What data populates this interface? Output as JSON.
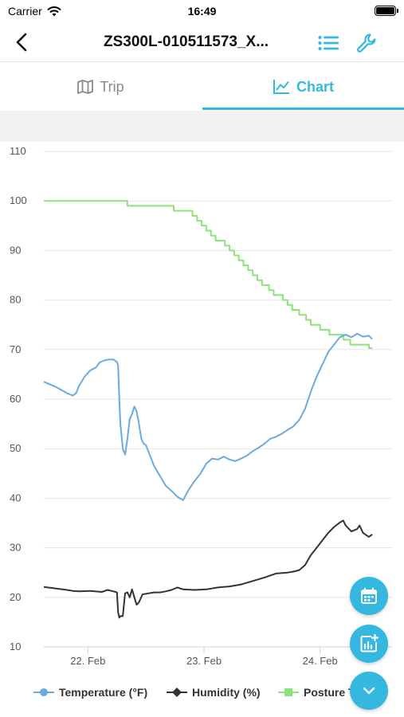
{
  "status_bar": {
    "carrier": "Carrier",
    "time": "16:49"
  },
  "nav": {
    "title": "ZS300L-010511573_X...",
    "back_icon": "chevron-left-icon",
    "list_icon": "list-icon",
    "settings_icon": "wrench-icon"
  },
  "tabs": [
    {
      "label": "Trip",
      "icon": "map-icon",
      "active": false
    },
    {
      "label": "Chart",
      "icon": "line-chart-icon",
      "active": true
    }
  ],
  "colors": {
    "accent": "#35b8e0",
    "temperature": "#6aabdf",
    "humidity": "#333333",
    "posture": "#8ee27a"
  },
  "fabs": [
    {
      "icon": "calendar-icon"
    },
    {
      "icon": "add-chart-icon"
    },
    {
      "icon": "chevron-down-icon"
    }
  ],
  "chart_data": {
    "type": "line",
    "ylim": [
      10,
      110
    ],
    "yticks": [
      10,
      20,
      30,
      40,
      50,
      60,
      70,
      80,
      90,
      100,
      110
    ],
    "xlim": [
      0,
      3
    ],
    "xticks": [
      {
        "value": 0.38,
        "label": "22. Feb"
      },
      {
        "value": 1.38,
        "label": "23. Feb"
      },
      {
        "value": 2.38,
        "label": "24. Feb"
      }
    ],
    "grid": true,
    "legend_position": "bottom",
    "series": [
      {
        "name": "Temperature (°F)",
        "color": "#6aabdf",
        "marker": "circle",
        "points": [
          [
            0,
            63.5
          ],
          [
            0.1,
            62.5
          ],
          [
            0.2,
            61.2
          ],
          [
            0.25,
            60.7
          ],
          [
            0.26,
            60.9
          ],
          [
            0.28,
            61.3
          ],
          [
            0.3,
            62.5
          ],
          [
            0.35,
            64.5
          ],
          [
            0.4,
            65.8
          ],
          [
            0.45,
            66.4
          ],
          [
            0.48,
            67.4
          ],
          [
            0.52,
            67.8
          ],
          [
            0.56,
            68
          ],
          [
            0.6,
            68
          ],
          [
            0.63,
            67.5
          ],
          [
            0.64,
            66.8
          ],
          [
            0.65,
            60
          ],
          [
            0.66,
            55
          ],
          [
            0.68,
            50
          ],
          [
            0.7,
            48.8
          ],
          [
            0.72,
            52
          ],
          [
            0.74,
            56
          ],
          [
            0.76,
            57
          ],
          [
            0.78,
            58.5
          ],
          [
            0.8,
            57.5
          ],
          [
            0.82,
            55
          ],
          [
            0.84,
            52
          ],
          [
            0.86,
            51
          ],
          [
            0.88,
            50.7
          ],
          [
            0.9,
            49.5
          ],
          [
            0.95,
            46.5
          ],
          [
            1.0,
            44.5
          ],
          [
            1.05,
            42.5
          ],
          [
            1.1,
            41.5
          ],
          [
            1.15,
            40.3
          ],
          [
            1.2,
            39.6
          ],
          [
            1.22,
            40.5
          ],
          [
            1.25,
            41.8
          ],
          [
            1.3,
            43.5
          ],
          [
            1.35,
            45
          ],
          [
            1.4,
            47
          ],
          [
            1.45,
            48
          ],
          [
            1.5,
            47.8
          ],
          [
            1.55,
            48.4
          ],
          [
            1.6,
            47.8
          ],
          [
            1.65,
            47.5
          ],
          [
            1.7,
            48
          ],
          [
            1.75,
            48.6
          ],
          [
            1.8,
            49.5
          ],
          [
            1.85,
            50.2
          ],
          [
            1.9,
            51
          ],
          [
            1.95,
            52
          ],
          [
            2.0,
            52.4
          ],
          [
            2.05,
            53
          ],
          [
            2.1,
            53.8
          ],
          [
            2.15,
            54.5
          ],
          [
            2.2,
            55.8
          ],
          [
            2.25,
            58
          ],
          [
            2.3,
            61.5
          ],
          [
            2.35,
            64.5
          ],
          [
            2.4,
            67
          ],
          [
            2.45,
            69.5
          ],
          [
            2.5,
            71
          ],
          [
            2.55,
            72.5
          ],
          [
            2.6,
            73
          ],
          [
            2.65,
            72.5
          ],
          [
            2.7,
            73.2
          ],
          [
            2.75,
            72.6
          ],
          [
            2.8,
            72.8
          ],
          [
            2.83,
            72.1
          ]
        ]
      },
      {
        "name": "Humidity (%)",
        "color": "#333333",
        "marker": "diamond",
        "points": [
          [
            0,
            22.1
          ],
          [
            0.1,
            21.8
          ],
          [
            0.2,
            21.5
          ],
          [
            0.25,
            21.3
          ],
          [
            0.3,
            21.2
          ],
          [
            0.4,
            21.3
          ],
          [
            0.5,
            21.1
          ],
          [
            0.55,
            21.5
          ],
          [
            0.6,
            21.2
          ],
          [
            0.63,
            21
          ],
          [
            0.64,
            17
          ],
          [
            0.65,
            15.9
          ],
          [
            0.66,
            16.2
          ],
          [
            0.68,
            16.2
          ],
          [
            0.7,
            20.8
          ],
          [
            0.72,
            21
          ],
          [
            0.74,
            20
          ],
          [
            0.76,
            21.6
          ],
          [
            0.78,
            20
          ],
          [
            0.8,
            18.5
          ],
          [
            0.82,
            19
          ],
          [
            0.85,
            20.6
          ],
          [
            0.9,
            20.8
          ],
          [
            0.95,
            21
          ],
          [
            1.0,
            21
          ],
          [
            1.05,
            21.2
          ],
          [
            1.1,
            21.5
          ],
          [
            1.15,
            22
          ],
          [
            1.2,
            21.6
          ],
          [
            1.3,
            21.5
          ],
          [
            1.4,
            21.6
          ],
          [
            1.5,
            22
          ],
          [
            1.6,
            22.2
          ],
          [
            1.7,
            22.6
          ],
          [
            1.8,
            23.3
          ],
          [
            1.9,
            24
          ],
          [
            2.0,
            24.8
          ],
          [
            2.1,
            25
          ],
          [
            2.15,
            25.2
          ],
          [
            2.2,
            25.5
          ],
          [
            2.25,
            26.5
          ],
          [
            2.3,
            28.5
          ],
          [
            2.35,
            30
          ],
          [
            2.4,
            31.5
          ],
          [
            2.45,
            33
          ],
          [
            2.5,
            34.2
          ],
          [
            2.55,
            35.1
          ],
          [
            2.58,
            35.5
          ],
          [
            2.6,
            34.5
          ],
          [
            2.65,
            33.3
          ],
          [
            2.7,
            33.8
          ],
          [
            2.72,
            34.5
          ],
          [
            2.75,
            33
          ],
          [
            2.8,
            32.2
          ],
          [
            2.83,
            32.7
          ]
        ]
      },
      {
        "name": "Posture T...",
        "color": "#8ee27a",
        "marker": "square",
        "points": [
          [
            0,
            100
          ],
          [
            0.72,
            100
          ],
          [
            0.72,
            99
          ],
          [
            1.12,
            99
          ],
          [
            1.12,
            98
          ],
          [
            1.28,
            98
          ],
          [
            1.28,
            97
          ],
          [
            1.32,
            97
          ],
          [
            1.32,
            96
          ],
          [
            1.36,
            96
          ],
          [
            1.36,
            95
          ],
          [
            1.4,
            95
          ],
          [
            1.4,
            94
          ],
          [
            1.44,
            94
          ],
          [
            1.44,
            93
          ],
          [
            1.48,
            93
          ],
          [
            1.48,
            92
          ],
          [
            1.56,
            92
          ],
          [
            1.56,
            91
          ],
          [
            1.6,
            91
          ],
          [
            1.6,
            90
          ],
          [
            1.64,
            90
          ],
          [
            1.64,
            89
          ],
          [
            1.68,
            89
          ],
          [
            1.68,
            88
          ],
          [
            1.72,
            88
          ],
          [
            1.72,
            87
          ],
          [
            1.76,
            87
          ],
          [
            1.76,
            86
          ],
          [
            1.8,
            86
          ],
          [
            1.8,
            85
          ],
          [
            1.84,
            85
          ],
          [
            1.84,
            84
          ],
          [
            1.88,
            84
          ],
          [
            1.88,
            83
          ],
          [
            1.94,
            83
          ],
          [
            1.94,
            82
          ],
          [
            1.98,
            82
          ],
          [
            1.98,
            81
          ],
          [
            2.06,
            81
          ],
          [
            2.06,
            80
          ],
          [
            2.1,
            80
          ],
          [
            2.1,
            79
          ],
          [
            2.14,
            79
          ],
          [
            2.14,
            78
          ],
          [
            2.2,
            78
          ],
          [
            2.2,
            77
          ],
          [
            2.26,
            77
          ],
          [
            2.26,
            76
          ],
          [
            2.3,
            76
          ],
          [
            2.3,
            75
          ],
          [
            2.38,
            75
          ],
          [
            2.38,
            74
          ],
          [
            2.46,
            74
          ],
          [
            2.46,
            73
          ],
          [
            2.58,
            73
          ],
          [
            2.58,
            72
          ],
          [
            2.64,
            72
          ],
          [
            2.64,
            71
          ],
          [
            2.8,
            71
          ],
          [
            2.8,
            70.3
          ],
          [
            2.83,
            70.3
          ]
        ]
      }
    ]
  }
}
